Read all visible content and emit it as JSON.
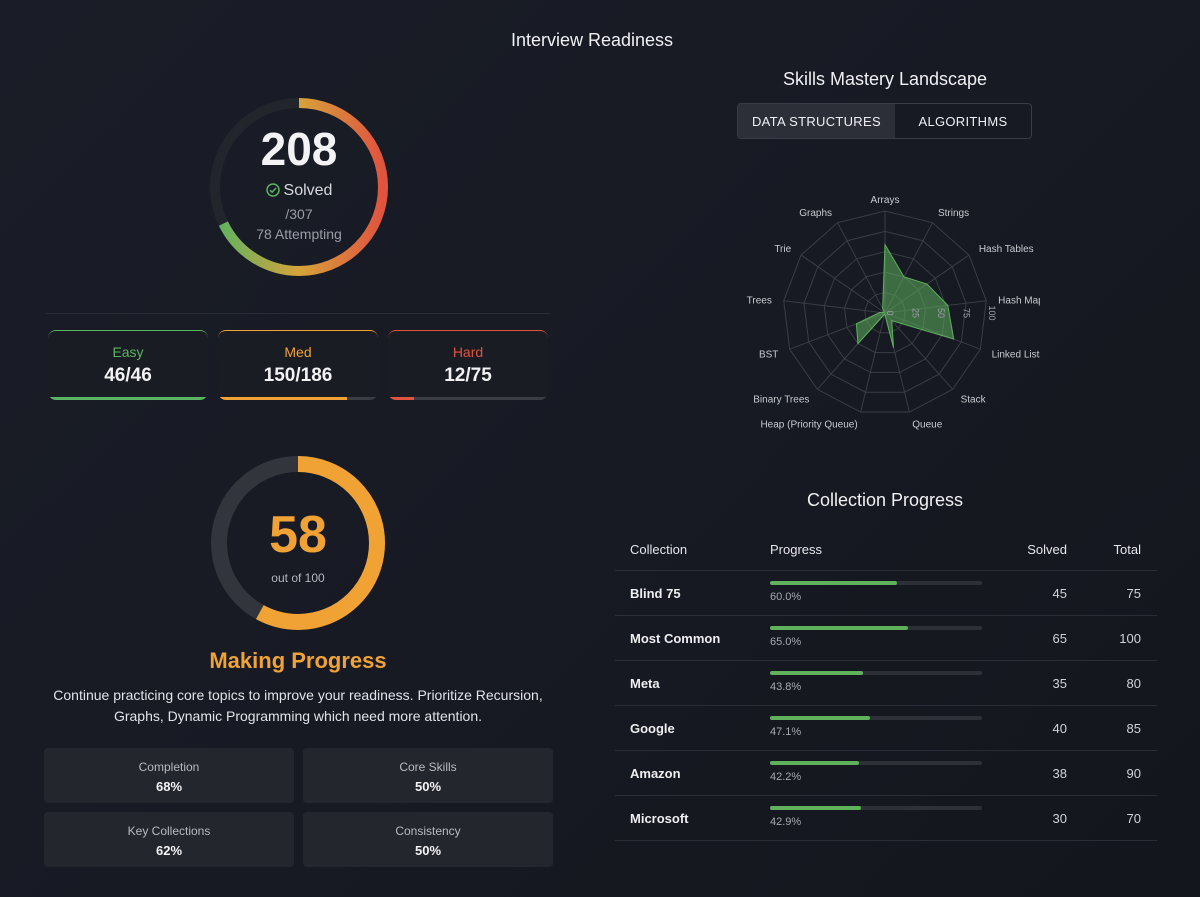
{
  "page": {
    "title": "Interview Readiness"
  },
  "solved": {
    "count": "208",
    "label": "Solved",
    "total": "/307",
    "attempting": "78 Attempting",
    "fraction": 0.678
  },
  "difficulty": [
    {
      "label": "Easy",
      "value": "46/46",
      "progress": 1.0,
      "color": "#5ab462"
    },
    {
      "label": "Med",
      "value": "150/186",
      "progress": 0.806,
      "color": "#f0a235"
    },
    {
      "label": "Hard",
      "value": "12/75",
      "progress": 0.16,
      "color": "#e0533f"
    }
  ],
  "readiness": {
    "score": "58",
    "score_fraction": 0.58,
    "subtitle": "out of 100",
    "status": "Making Progress",
    "advice": "Continue practicing core topics to improve your readiness. Prioritize Recursion, Graphs, Dynamic Programming which need more attention.",
    "metrics": [
      {
        "label": "Completion",
        "value": "68%"
      },
      {
        "label": "Core Skills",
        "value": "50%"
      },
      {
        "label": "Key Collections",
        "value": "62%"
      },
      {
        "label": "Consistency",
        "value": "50%"
      }
    ]
  },
  "skills": {
    "title": "Skills Mastery Landscape",
    "tabs": [
      "DATA STRUCTURES",
      "ALGORITHMS"
    ],
    "active_tab": "DATA STRUCTURES",
    "chart_data": {
      "type": "radar",
      "axes": [
        "Arrays",
        "Strings",
        "Hash Tables",
        "Hash Maps",
        "Linked Lists",
        "Stack",
        "Queue",
        "Heap (Priority Queue)",
        "Binary Trees",
        "BST",
        "Trees",
        "Trie",
        "Graphs"
      ],
      "values": [
        67,
        40,
        50,
        62,
        72,
        10,
        35,
        0,
        40,
        30,
        5,
        0,
        5
      ],
      "scale_labels": [
        "0",
        "25",
        "50",
        "75",
        "100"
      ],
      "range": [
        0,
        100
      ],
      "fill_color": "#5fb15c"
    }
  },
  "collections": {
    "title": "Collection Progress",
    "headers": {
      "name": "Collection",
      "progress": "Progress",
      "solved": "Solved",
      "total": "Total"
    },
    "rows": [
      {
        "name": "Blind 75",
        "pct": "60.0%",
        "progress": 0.6,
        "solved": "45",
        "total": "75"
      },
      {
        "name": "Most Common",
        "pct": "65.0%",
        "progress": 0.65,
        "solved": "65",
        "total": "100"
      },
      {
        "name": "Meta",
        "pct": "43.8%",
        "progress": 0.438,
        "solved": "35",
        "total": "80"
      },
      {
        "name": "Google",
        "pct": "47.1%",
        "progress": 0.471,
        "solved": "40",
        "total": "85"
      },
      {
        "name": "Amazon",
        "pct": "42.2%",
        "progress": 0.422,
        "solved": "38",
        "total": "90"
      },
      {
        "name": "Microsoft",
        "pct": "42.9%",
        "progress": 0.429,
        "solved": "30",
        "total": "70"
      }
    ]
  }
}
